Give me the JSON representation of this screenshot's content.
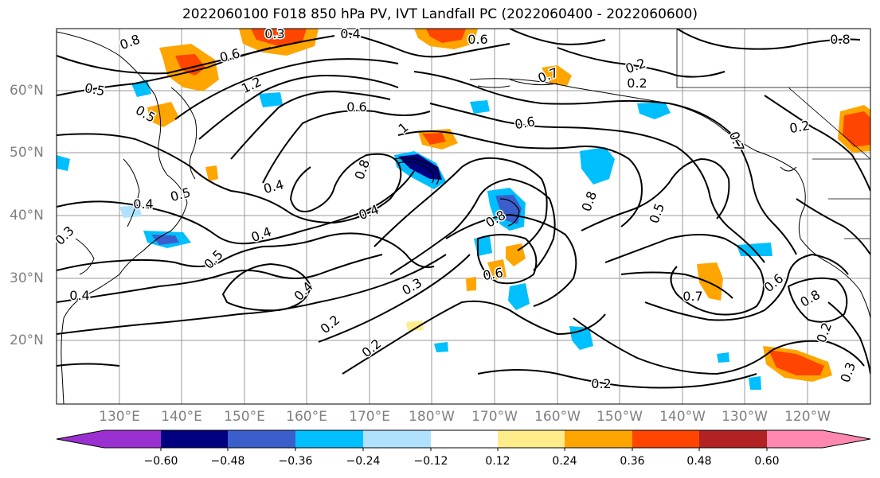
{
  "title": "2022060100 F018 850 hPa PV, IVT Landfall PC (2022060400 - 2022060600)",
  "latitude_labels": [
    "60°N",
    "50°N",
    "40°N",
    "30°N",
    "20°N"
  ],
  "longitude_labels": [
    "130°E",
    "140°E",
    "150°E",
    "160°E",
    "170°E",
    "180°W",
    "170°W",
    "160°W",
    "150°W",
    "140°W",
    "130°W",
    "120°W"
  ],
  "colorbar": {
    "ticks": [
      "−0.60",
      "−0.48",
      "−0.36",
      "−0.24",
      "−0.12",
      "0.12",
      "0.24",
      "0.36",
      "0.48",
      "0.60"
    ],
    "colors": [
      "#9b30d0",
      "#000080",
      "#3a5fcd",
      "#00bfff",
      "#b0e2ff",
      "#ffffff",
      "#ffec8b",
      "#ffa500",
      "#ff4500",
      "#b22222",
      "#ff88b0"
    ]
  },
  "contour_labels": [
    "0.8",
    "0.3",
    "0.4",
    "0.6",
    "0.8",
    "0.6",
    "0.5",
    "1.2",
    "0.6",
    "0.2",
    "0.7",
    "0.6",
    "0.5",
    "0.4",
    "0.8",
    "1",
    "0.4",
    "0.4",
    "0.5",
    "0.3",
    "0.5",
    "0.4",
    "0.4",
    "0.8",
    "0.6",
    "0.2",
    "0.8",
    "0.7",
    "0.5",
    "0.7",
    "0.6",
    "0.8",
    "0.3",
    "0.2",
    "0.2",
    "0.2",
    "0.2",
    "0.3",
    "0.2",
    "0.4"
  ]
}
